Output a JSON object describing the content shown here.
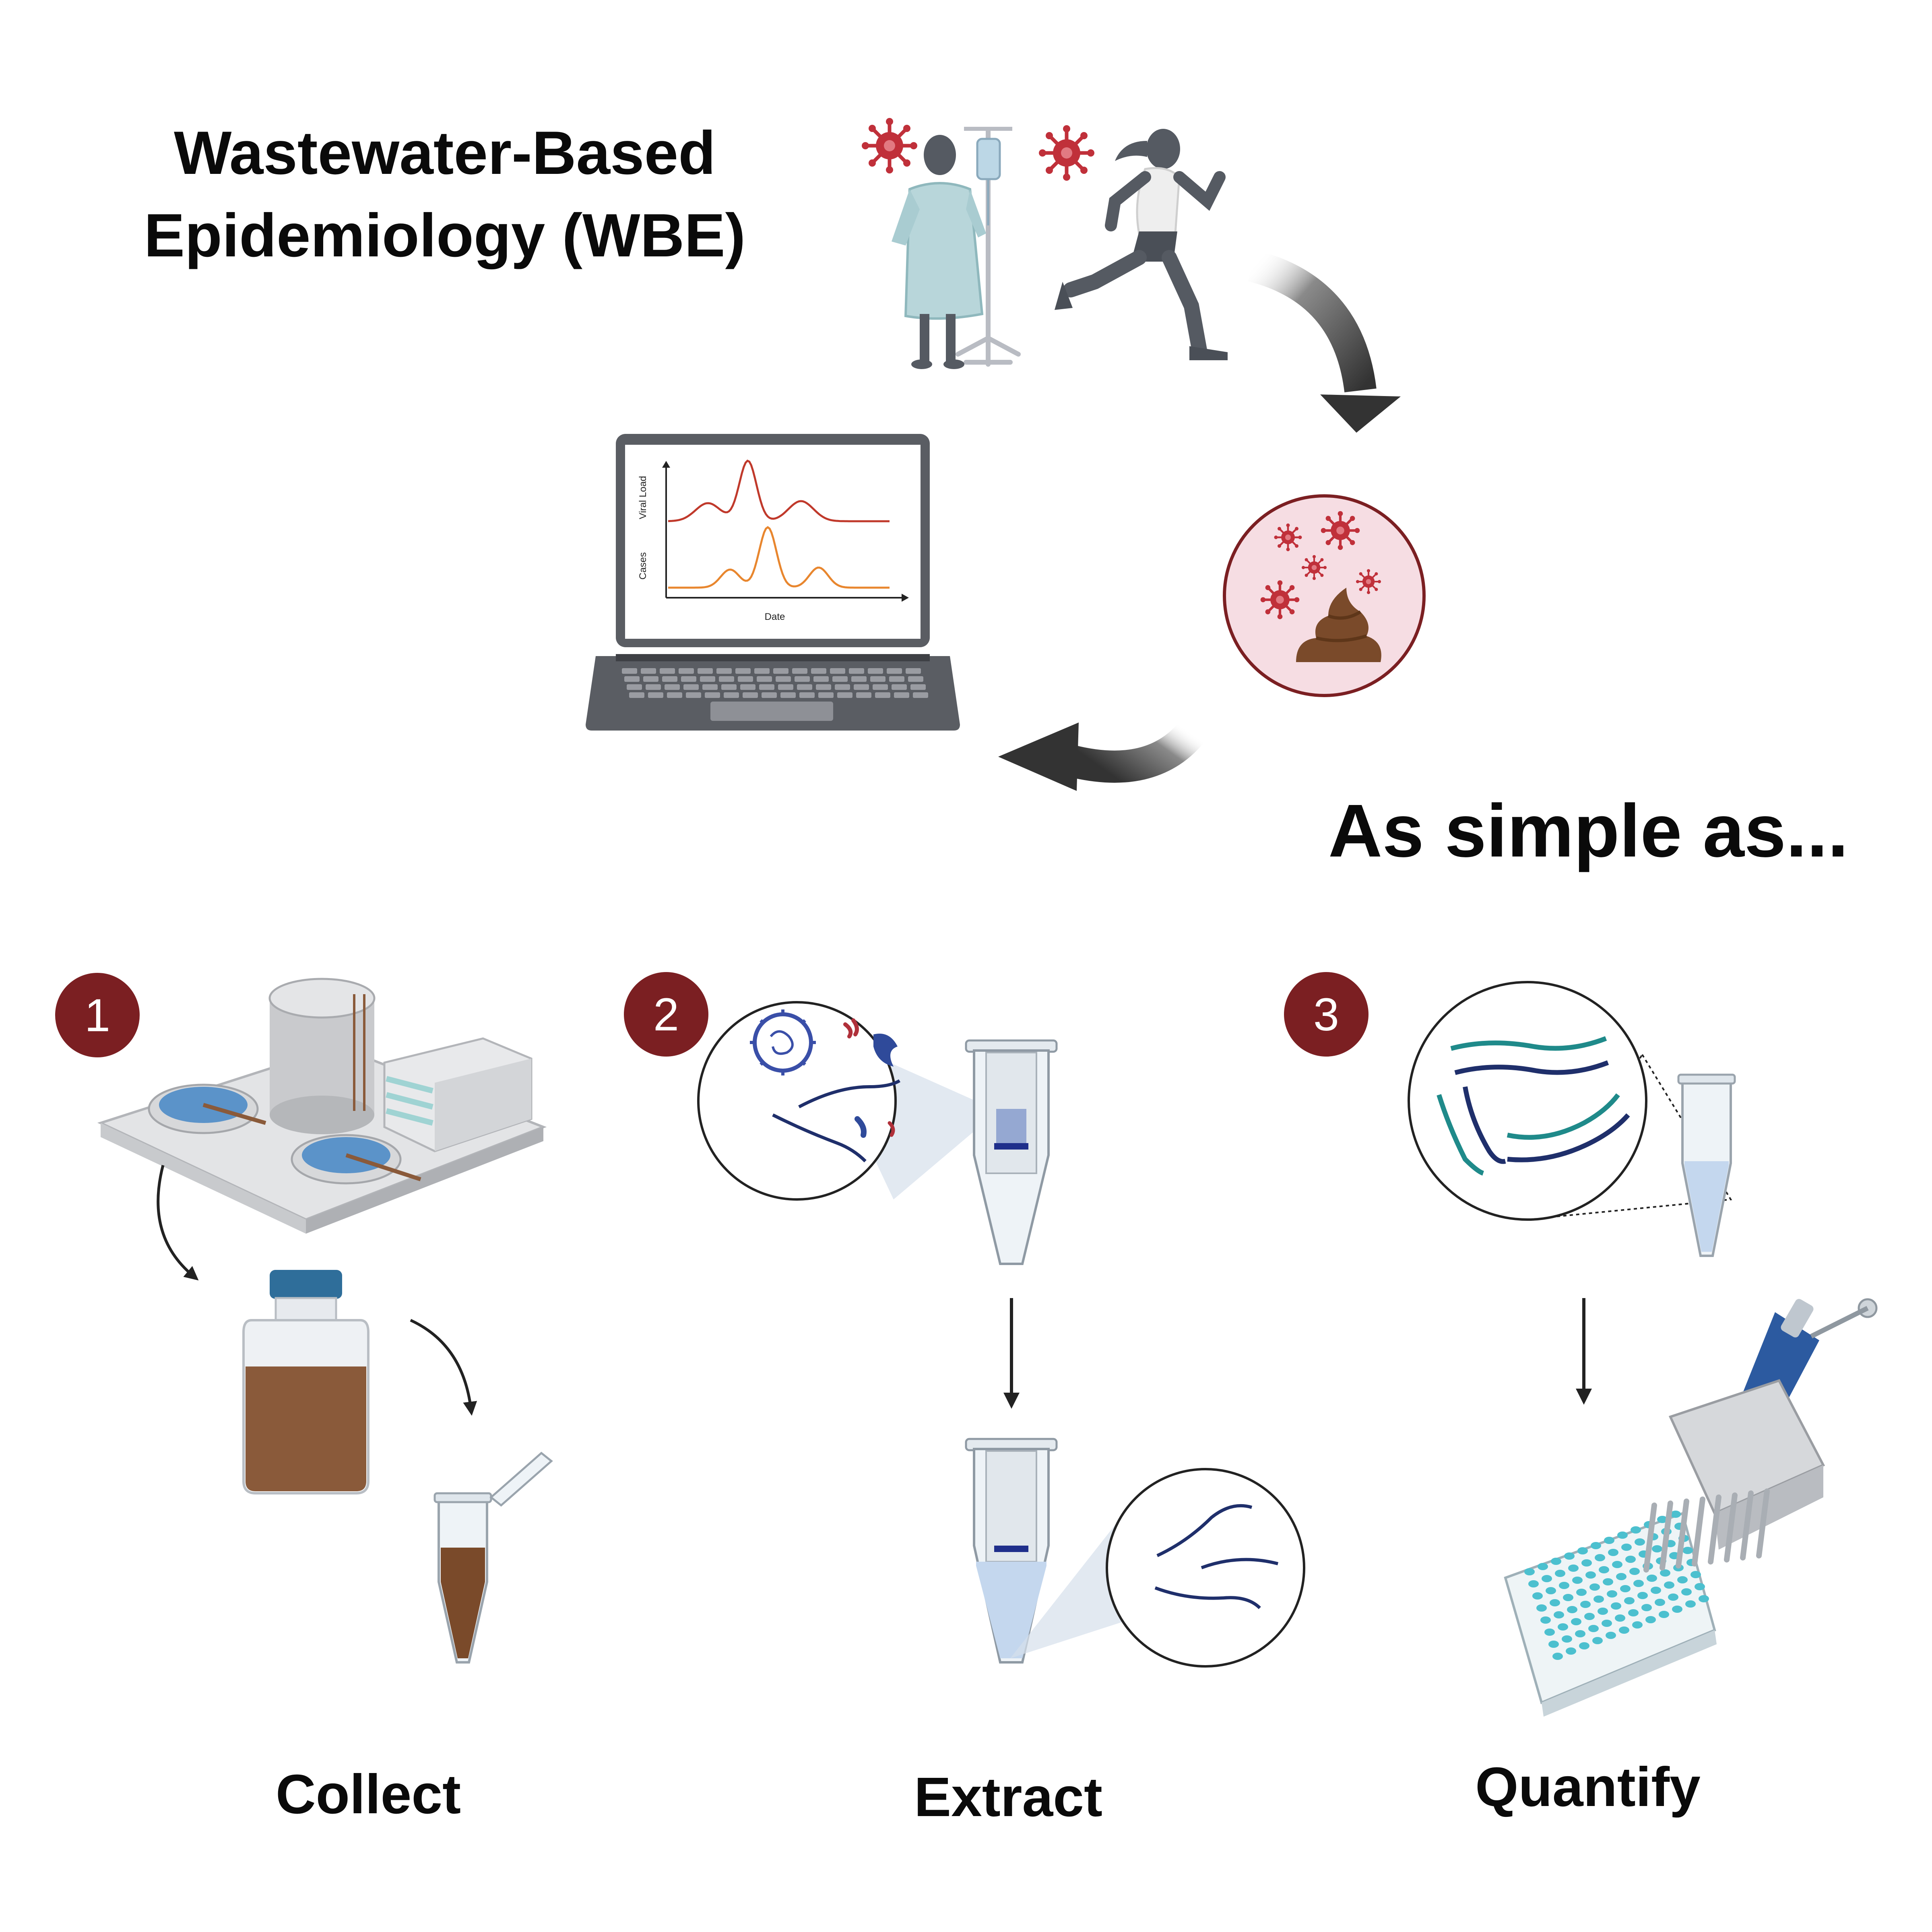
{
  "title": {
    "line1": "Wastewater-Based",
    "line2": "Epidemiology (WBE)"
  },
  "tagline": "As simple as...",
  "laptop_chart": {
    "ylabel_top": "Viral Load",
    "ylabel_bottom": "Cases",
    "xlabel": "Date",
    "colors": {
      "viral_load": "#c0392b",
      "cases": "#e8862e"
    }
  },
  "steps": [
    {
      "number": "1",
      "label": "Collect"
    },
    {
      "number": "2",
      "label": "Extract"
    },
    {
      "number": "3",
      "label": "Quantify"
    }
  ],
  "colors": {
    "badge": "#7b1f22",
    "arrow_dark": "#3a3a3a",
    "virus": "#c0303a",
    "rna_teal": "#1f8a8a",
    "rna_navy": "#1f2f6b",
    "water_blue": "#5b93c9",
    "sample_brown": "#8a5a3a"
  },
  "icons": [
    "patient-icon",
    "runner-icon",
    "virus-icon",
    "laptop-icon",
    "stool-sample-icon",
    "treatment-plant-icon",
    "sample-bottle-icon",
    "microtube-icon",
    "spin-column-icon",
    "rna-strand-icon",
    "multichannel-pipette-icon",
    "well-plate-icon"
  ]
}
